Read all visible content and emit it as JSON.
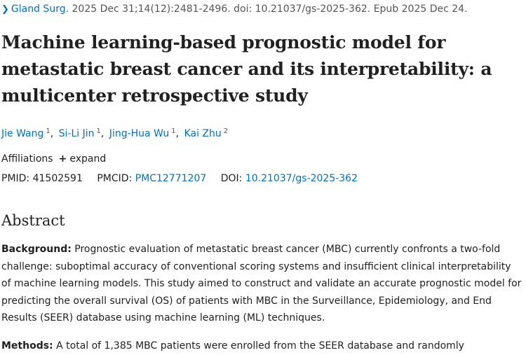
{
  "citation": {
    "journal": "Gland Surg.",
    "details": "2025 Dec 31;14(12):2481-2496. doi: 10.21037/gs-2025-362. Epub 2025 Dec 24."
  },
  "article": {
    "title": "Machine learning-based prognostic model for metastatic breast cancer and its interpretability: a multicenter retrospective study"
  },
  "authors": [
    {
      "name": "Jie Wang",
      "sup": "1"
    },
    {
      "name": "Si-Li Jin",
      "sup": "1"
    },
    {
      "name": "Jing-Hua Wu",
      "sup": "1"
    },
    {
      "name": "Kai Zhu",
      "sup": "2"
    }
  ],
  "affiliations": {
    "label": "Affiliations",
    "expand_label": "expand"
  },
  "ids": {
    "pmid_label": "PMID:",
    "pmid": "41502591",
    "pmcid_label": "PMCID:",
    "pmcid": "PMC12771207",
    "doi_label": "DOI:",
    "doi": "10.21037/gs-2025-362"
  },
  "abstract": {
    "heading": "Abstract",
    "background_label": "Background:",
    "background_text": "Prognostic evaluation of metastatic breast cancer (MBC) currently confronts a two-fold challenge: suboptimal accuracy of conventional scoring systems and insufficient clinical interpretability of machine learning models. This study aimed to construct and validate an accurate prognostic model for predicting the overall survival (OS) of patients with MBC in the Surveillance, Epidemiology, and End Results (SEER) database using machine learning (ML) techniques.",
    "methods_label": "Methods:",
    "methods_text": "A total of 1,385 MBC patients were enrolled from the SEER database and randomly"
  }
}
